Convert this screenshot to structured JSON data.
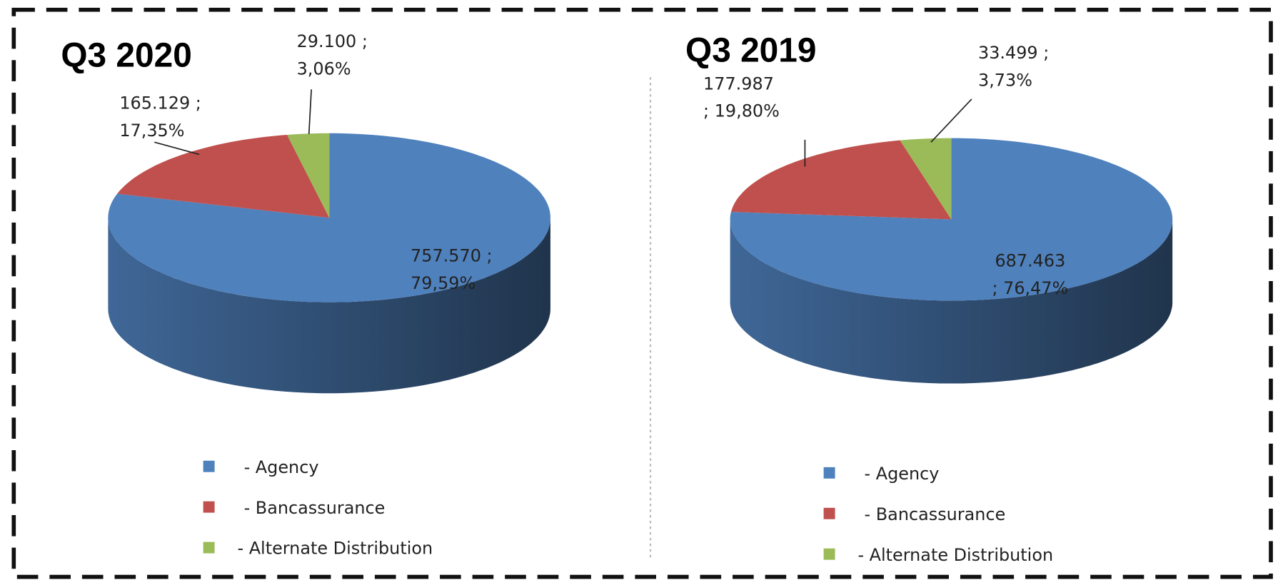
{
  "chart_data": [
    {
      "type": "pie",
      "title": "Q3 2020",
      "categories": [
        "- Agency",
        "- Bancassurance",
        "- Alternate Distribution"
      ],
      "values": [
        757570,
        165129,
        29100
      ],
      "value_labels": [
        "757.570 ;\n79,59%",
        "165.129 ;\n17,35%",
        "29.100 ;\n3,06%"
      ],
      "colors": [
        "#4f81bd",
        "#c0504d",
        "#9bbb59"
      ]
    },
    {
      "type": "pie",
      "title": "Q3 2019",
      "categories": [
        "- Agency",
        "- Bancassurance",
        "- Alternate Distribution"
      ],
      "values": [
        687463,
        177987,
        33499
      ],
      "value_labels": [
        "687.463\n; 76,47%",
        "177.987\n; 19,80%",
        "33.499 ;\n3,73%"
      ],
      "colors": [
        "#4f81bd",
        "#c0504d",
        "#9bbb59"
      ]
    }
  ]
}
